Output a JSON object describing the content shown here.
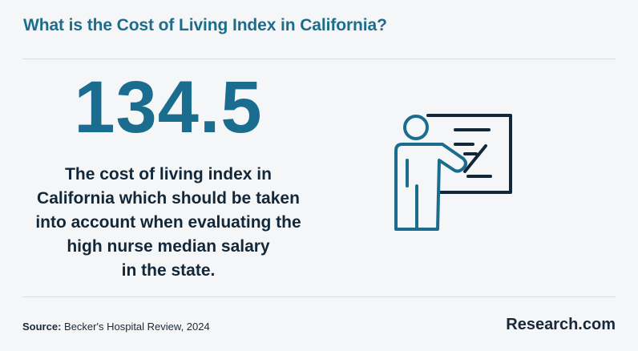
{
  "header": {
    "title": "What is the Cost of Living Index in California?"
  },
  "stat": {
    "value": "134.5",
    "description_lines": [
      "The cost of living index in",
      "California which should be taken",
      "into account when evaluating the",
      "high nurse median salary",
      "in the state."
    ]
  },
  "icon": {
    "name": "presenter-at-board-icon",
    "color": "#1a6d8f",
    "accent": "#12283a"
  },
  "footer": {
    "source_label": "Source:",
    "source_text": "Becker's Hospital Review, 2024",
    "brand": "Research.com"
  }
}
